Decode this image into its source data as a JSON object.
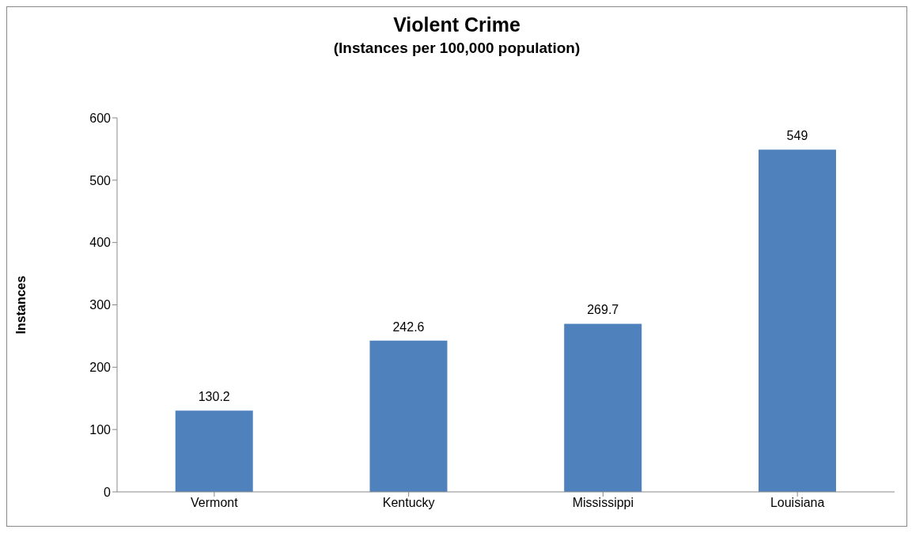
{
  "chart_data": {
    "type": "bar",
    "title": "Violent Crime",
    "subtitle": "(Instances per 100,000 population)",
    "ylabel": "Instances",
    "categories": [
      "Vermont",
      "Kentucky",
      "Mississippi",
      "Louisiana"
    ],
    "values": [
      130.2,
      242.6,
      269.7,
      549
    ],
    "color": "#4f81bd",
    "ylim": [
      0,
      600
    ],
    "yticks": [
      0,
      100,
      200,
      300,
      400,
      500,
      600
    ],
    "grid": false,
    "data_labels": true
  }
}
